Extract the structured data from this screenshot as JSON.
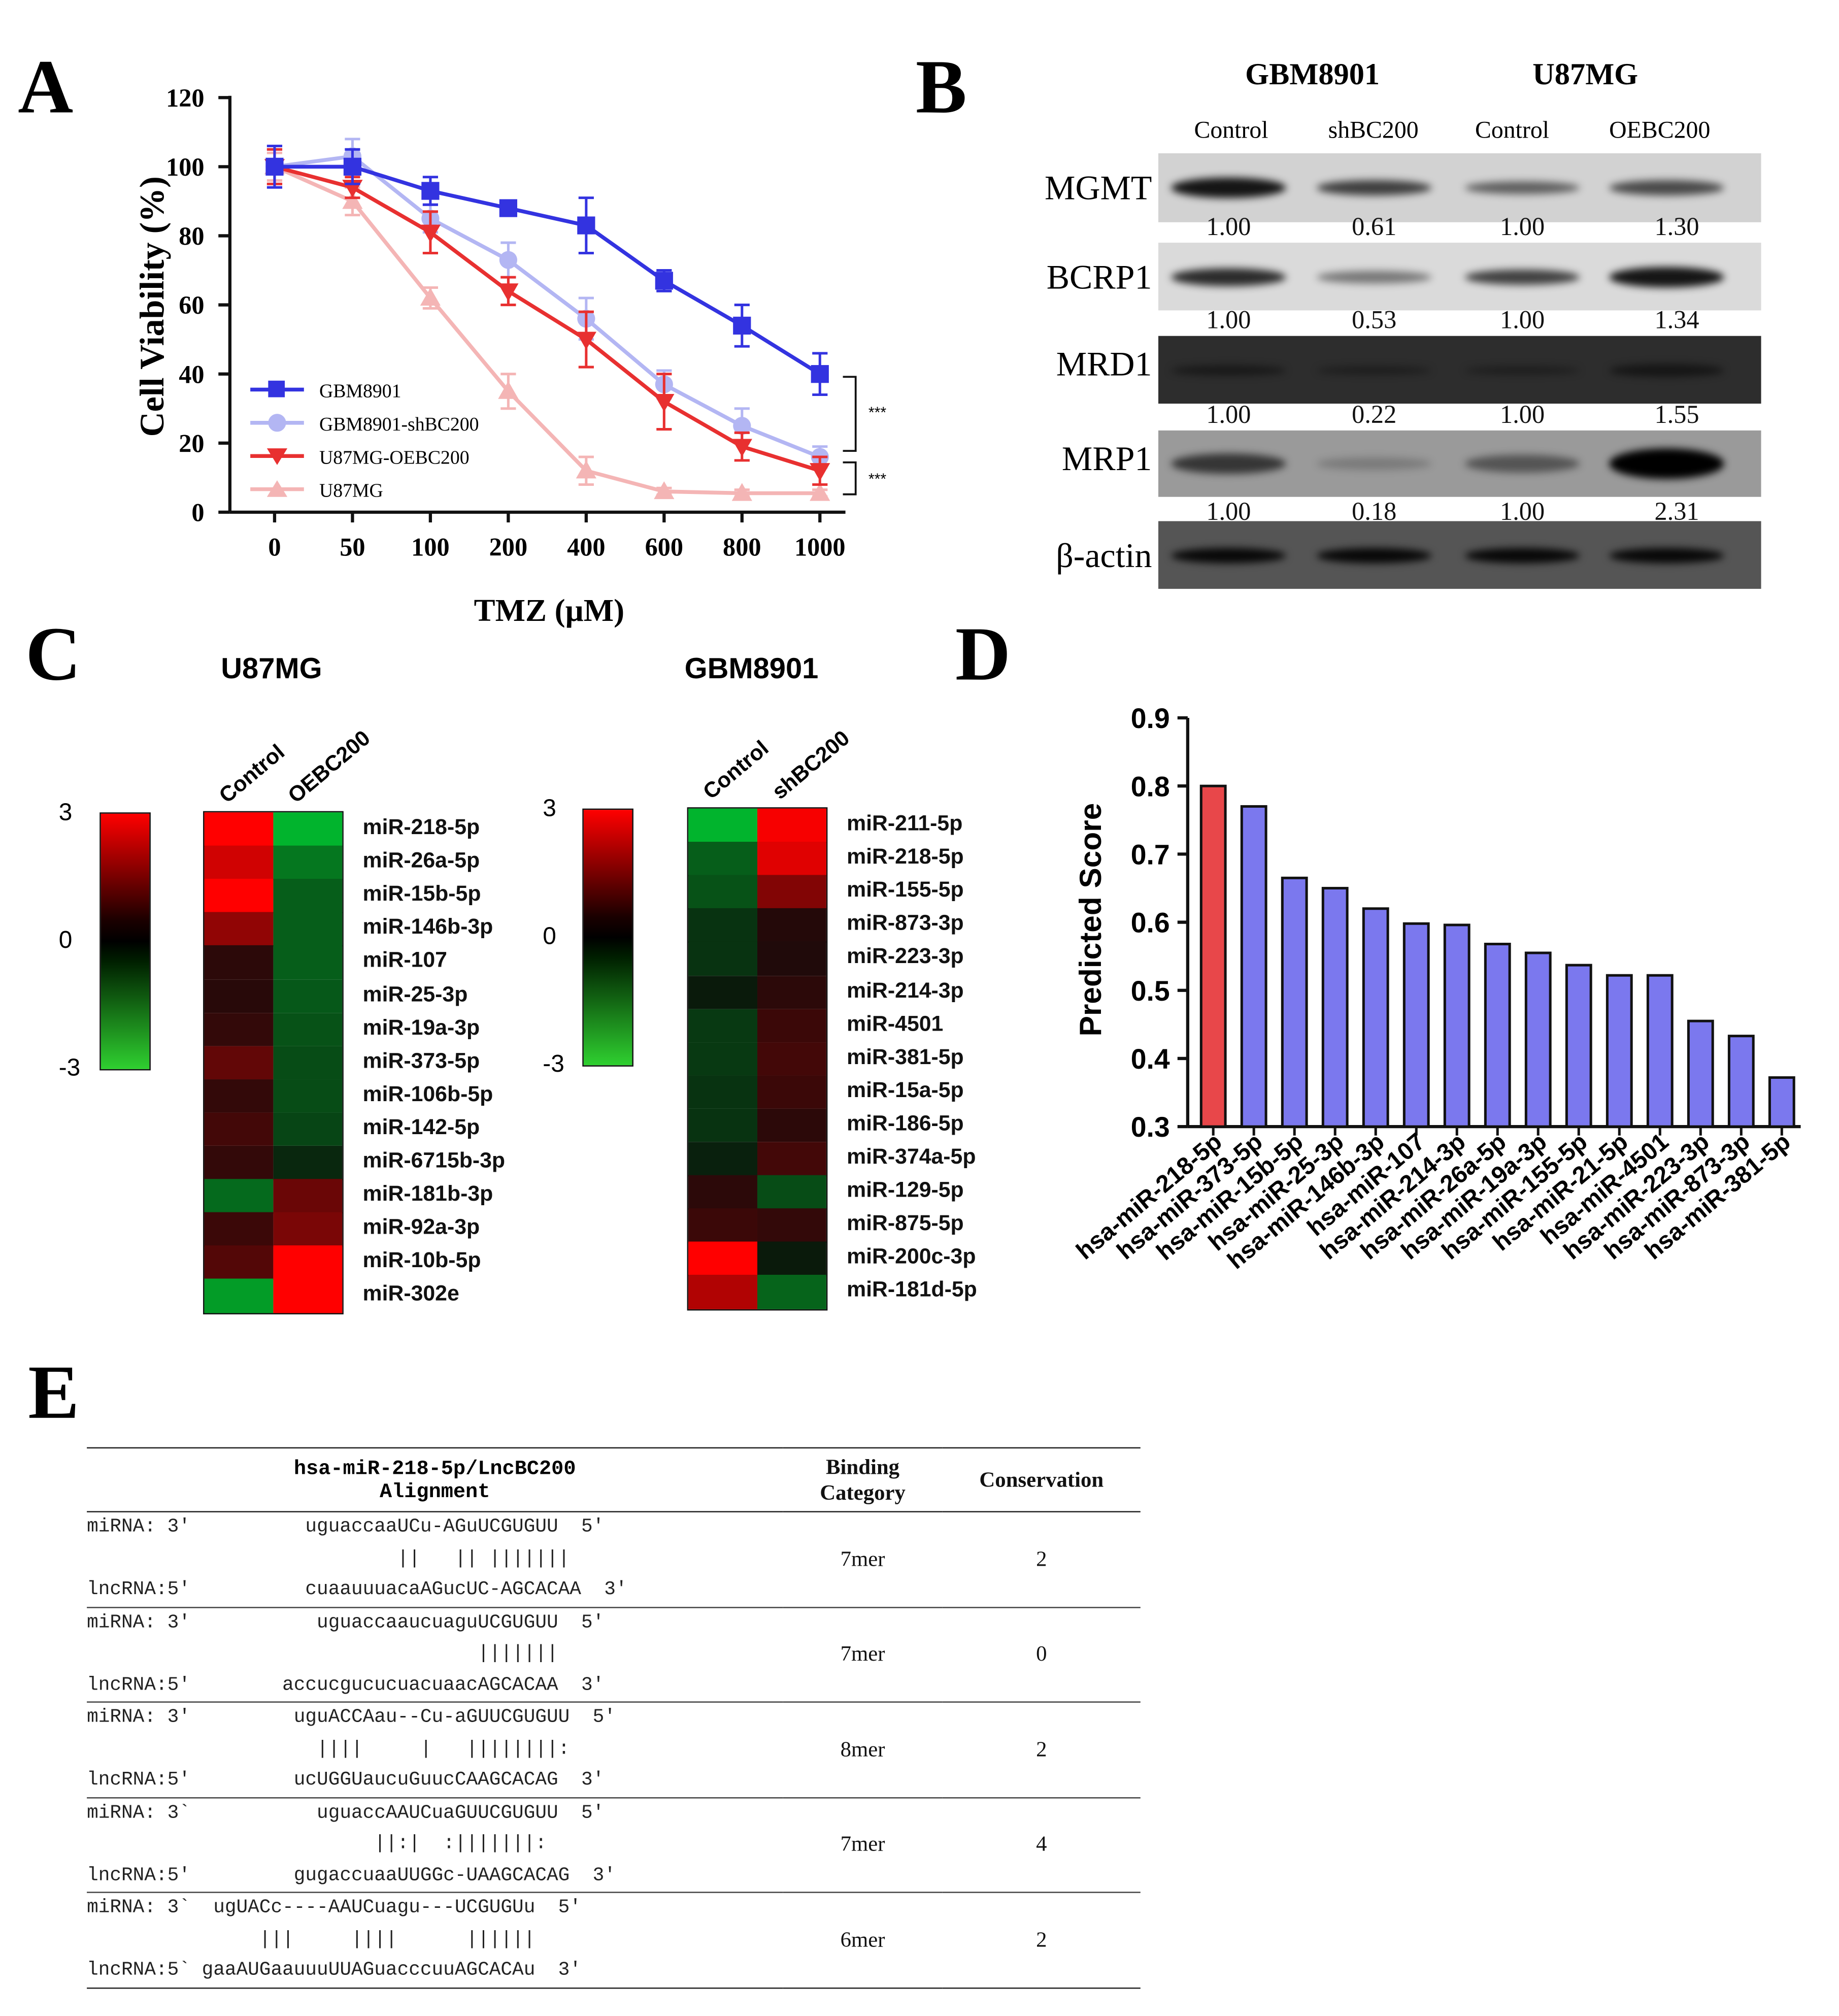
{
  "panels": {
    "A": "A",
    "B": "B",
    "C": "C",
    "D": "D",
    "E": "E"
  },
  "panelA": {
    "ylabel": "Cell Viability (%)",
    "xlabel": "TMZ (µM)",
    "yticks": [
      "0",
      "20",
      "40",
      "60",
      "80",
      "100",
      "120"
    ],
    "xticks": [
      "0",
      "50",
      "100",
      "200",
      "400",
      "600",
      "800",
      "1000"
    ],
    "sig1": "***",
    "sig2": "***"
  },
  "panelB": {
    "group1": "GBM8901",
    "group2": "U87MG",
    "lanes": [
      "Control",
      "shBC200",
      "Control",
      "OEBC200"
    ],
    "proteins": [
      {
        "name": "MGMT",
        "values": [
          "1.00",
          "0.61",
          "1.00",
          "1.30"
        ]
      },
      {
        "name": "BCRP1",
        "values": [
          "1.00",
          "0.53",
          "1.00",
          "1.34"
        ]
      },
      {
        "name": "MRD1",
        "values": [
          "1.00",
          "0.22",
          "1.00",
          "1.55"
        ]
      },
      {
        "name": "MRP1",
        "values": [
          "1.00",
          "0.18",
          "1.00",
          "2.31"
        ]
      },
      {
        "name": "β-actin",
        "values": []
      }
    ]
  },
  "panelC": {
    "left": {
      "title": "U87MG",
      "cols": [
        "Control",
        "OEBC200"
      ],
      "scale_max": "3",
      "scale_mid": "0",
      "scale_min": "-3",
      "rows": [
        "miR-218-5p",
        "miR-26a-5p",
        "miR-15b-5p",
        "miR-146b-3p",
        "miR-107",
        "miR-25-3p",
        "miR-19a-3p",
        "miR-373-5p",
        "miR-106b-5p",
        "miR-142-5p",
        "miR-6715b-3p",
        "miR-181b-3p",
        "miR-92a-3p",
        "miR-10b-5p",
        "miR-302e"
      ],
      "values": [
        [
          3,
          -2.6
        ],
        [
          2.4,
          -1.6
        ],
        [
          3,
          -1.2
        ],
        [
          1.6,
          -1.2
        ],
        [
          0.3,
          -1.2
        ],
        [
          0.25,
          -1.1
        ],
        [
          0.4,
          -1.0
        ],
        [
          1.0,
          -0.9
        ],
        [
          0.4,
          -0.9
        ],
        [
          0.6,
          -0.8
        ],
        [
          0.4,
          -0.3
        ],
        [
          -1.4,
          1.1
        ],
        [
          0.5,
          1.3
        ],
        [
          0.8,
          3
        ],
        [
          -2.2,
          3
        ]
      ]
    },
    "right": {
      "title": "GBM8901",
      "cols": [
        "Control",
        "shBC200"
      ],
      "scale_max": "3",
      "scale_mid": "0",
      "scale_min": "-3",
      "rows": [
        "miR-211-5p",
        "miR-218-5p",
        "miR-155-5p",
        "miR-873-3p",
        "miR-223-3p",
        "miR-214-3p",
        "miR-4501",
        "miR-381-5p",
        "miR-15a-5p",
        "miR-186-5p",
        "miR-374a-5p",
        "miR-129-5p",
        "miR-875-5p",
        "miR-200c-3p",
        "miR-181d-5p"
      ],
      "values": [
        [
          -2.6,
          2.9
        ],
        [
          -1.2,
          2.6
        ],
        [
          -1.0,
          1.4
        ],
        [
          -0.5,
          0.2
        ],
        [
          -0.5,
          0.15
        ],
        [
          -0.1,
          0.3
        ],
        [
          -0.6,
          0.5
        ],
        [
          -0.6,
          0.6
        ],
        [
          -0.5,
          0.5
        ],
        [
          -0.5,
          0.3
        ],
        [
          -0.2,
          0.6
        ],
        [
          0.3,
          -0.9
        ],
        [
          0.5,
          0.4
        ],
        [
          3,
          -0.1
        ],
        [
          2.0,
          -1.3
        ]
      ]
    }
  },
  "chart_data": {
    "type": "bar",
    "categories": [
      "hsa-miR-218-5p",
      "hsa-miR-373-5p",
      "hsa-miR-15b-5p",
      "hsa-miR-25-3p",
      "hsa-miR-146b-3p",
      "hsa-miR-107",
      "hsa-miR-214-3p",
      "hsa-miR-26a-5p",
      "hsa-miR-19a-3p",
      "hsa-miR-155-5p",
      "hsa-miR-21-5p",
      "hsa-miR-4501",
      "hsa-miR-223-3p",
      "hsa-miR-873-3p",
      "hsa-miR-381-5p"
    ],
    "values": [
      0.8,
      0.77,
      0.665,
      0.65,
      0.62,
      0.598,
      0.596,
      0.568,
      0.555,
      0.537,
      0.522,
      0.522,
      0.455,
      0.433,
      0.372
    ],
    "ylabel": "Predicted Score",
    "ylim": [
      0.3,
      0.9
    ],
    "yticks": [
      "0.3",
      "0.4",
      "0.5",
      "0.6",
      "0.7",
      "0.8",
      "0.9"
    ],
    "colors": {
      "highlight": "#e8474a",
      "bar": "#7b78ee"
    }
  },
  "panelE": {
    "header_alignment_l1": "hsa-miR-218-5p/LncBC200",
    "header_alignment_l2": "Alignment",
    "header_binding_l1": "Binding",
    "header_binding_l2": "Category",
    "header_conservation": "Conservation",
    "rows": [
      {
        "l1": "miRNA: 3'          uguaccaaUCu-AGuUCGUGUU  5'",
        "l2": "                           ||   || |||||||",
        "l3": "lncRNA:5'          cuaauuuacaAGucUC-AGCACAA  3'",
        "cat": "7mer",
        "cons": "2"
      },
      {
        "l1": "miRNA: 3'           uguaccaaucuaguUCGUGUU  5'",
        "l2": "                                  |||||||",
        "l3": "lncRNA:5'        accucgucucuacuaacAGCACAA  3'",
        "cat": "7mer",
        "cons": "0"
      },
      {
        "l1": "miRNA: 3'         uguACCAau--Cu-aGUUCGUGUU  5'",
        "l2": "                    ||||     |   ||||||||:",
        "l3": "lncRNA:5'         ucUGGUaucuGuucCAAGCACAG  3'",
        "cat": "8mer",
        "cons": "2"
      },
      {
        "l1": "miRNA: 3`           uguaccAAUCuaGUUCGUGUU  5'",
        "l2": "                         ||:|  :|||||||:",
        "l3": "lncRNA:5'         gugaccuaaUUGGc-UAAGCACAG  3'",
        "cat": "7mer",
        "cons": "4"
      },
      {
        "l1": "miRNA: 3`  ugUACc----AAUCuagu---UCGUGUu  5'",
        "l2": "               |||     ||||      ||||||",
        "l3": "lncRNA:5` gaaAUGaauuuUUAGuacccuuAGCACAu  3'",
        "cat": "6mer",
        "cons": "2"
      }
    ]
  }
}
